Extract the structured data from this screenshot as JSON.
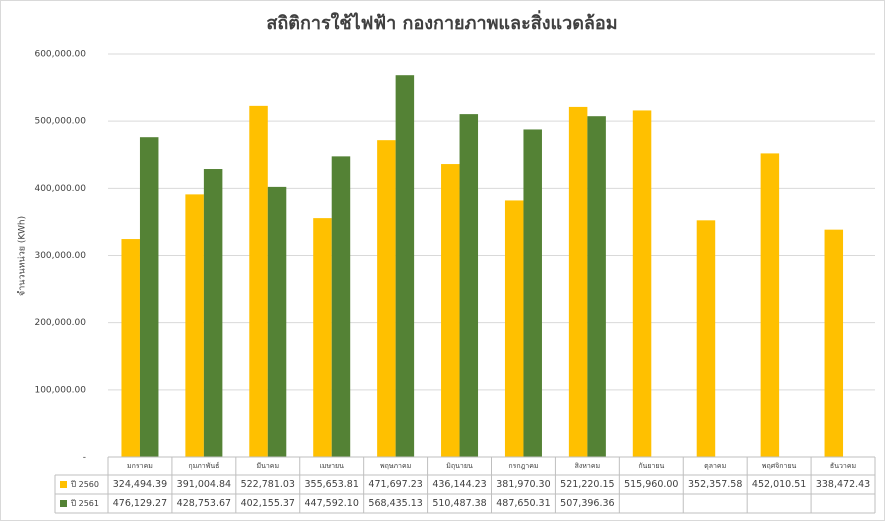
{
  "chart_data": {
    "type": "bar",
    "title": "สถิติการใช้ไฟฟ้า กองกายภาพและสิ่งแวดล้อม",
    "y_label": "จำนวนหน่วย (KWh)",
    "categories": [
      "มกราคม",
      "กุมภาพันธ์",
      "มีนาคม",
      "เมษายน",
      "พฤษภาคม",
      "มิถุนายน",
      "กรกฎาคม",
      "สิงหาคม",
      "กันยายน",
      "ตุลาคม",
      "พฤศจิกายน",
      "ธันวาคม"
    ],
    "series": [
      {
        "name": "ปี 2560",
        "color": "#ffc000",
        "values": [
          324494.39,
          391004.84,
          522781.03,
          355653.81,
          471697.23,
          436144.23,
          381970.3,
          521220.15,
          515960.0,
          352357.58,
          452010.51,
          338472.43
        ],
        "value_labels": [
          "324,494.39",
          "391,004.84",
          "522,781.03",
          "355,653.81",
          "471,697.23",
          "436,144.23",
          "381,970.30",
          "521,220.15",
          "515,960.00",
          "352,357.58",
          "452,010.51",
          "338,472.43"
        ]
      },
      {
        "name": "ปี 2561",
        "color": "#548235",
        "values": [
          476129.27,
          428753.67,
          402155.37,
          447592.1,
          568435.13,
          510487.38,
          487650.31,
          507396.36,
          null,
          null,
          null,
          null
        ],
        "value_labels": [
          "476,129.27",
          "428,753.67",
          "402,155.37",
          "447,592.10",
          "568,435.13",
          "510,487.38",
          "487,650.31",
          "507,396.36",
          null,
          null,
          null,
          null
        ]
      }
    ],
    "ylim": [
      0,
      600000
    ],
    "yticks": [
      {
        "value": 0,
        "label": "-"
      },
      {
        "value": 100000,
        "label": "100,000.00"
      },
      {
        "value": 200000,
        "label": "200,000.00"
      },
      {
        "value": 300000,
        "label": "300,000.00"
      },
      {
        "value": 400000,
        "label": "400,000.00"
      },
      {
        "value": 500000,
        "label": "500,000.00"
      },
      {
        "value": 600000,
        "label": "600,000.00"
      }
    ],
    "grid": true,
    "data_table": true
  }
}
